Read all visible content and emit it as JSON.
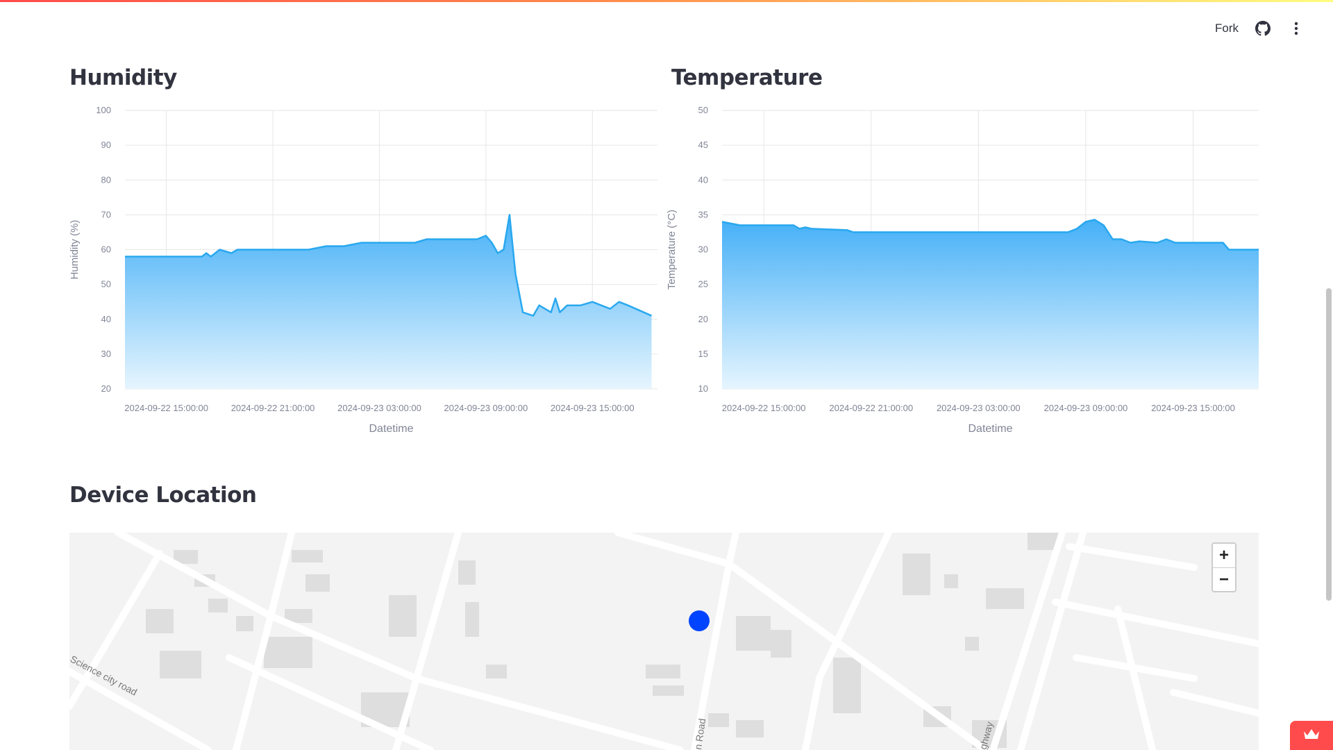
{
  "header": {
    "fork_label": "Fork"
  },
  "icons": {
    "github": "github-icon",
    "menu": "more-vertical-icon",
    "brand": "crown-icon"
  },
  "sections": {
    "humidity_title": "Humidity",
    "temperature_title": "Temperature",
    "location_title": "Device Location"
  },
  "chart_data": [
    {
      "type": "area",
      "title": "Humidity",
      "xlabel": "Datetime",
      "ylabel": "Humidity (%)",
      "ylim": [
        20,
        100
      ],
      "yticks": [
        100,
        90,
        80,
        70,
        60,
        50,
        40,
        30,
        20
      ],
      "xticks": [
        "2024-09-22 15:00:00",
        "2024-09-22 21:00:00",
        "2024-09-23 03:00:00",
        "2024-09-23 09:00:00",
        "2024-09-23 15:00:00"
      ],
      "grid": true,
      "color": "#29a8ef",
      "x": [
        "2024-09-22 12:40",
        "2024-09-22 17:00",
        "2024-09-22 17:15",
        "2024-09-22 17:30",
        "2024-09-22 18:00",
        "2024-09-22 18:40",
        "2024-09-22 19:00",
        "2024-09-22 23:00",
        "2024-09-23 00:00",
        "2024-09-23 01:00",
        "2024-09-23 02:00",
        "2024-09-23 05:00",
        "2024-09-23 05:40",
        "2024-09-23 08:30",
        "2024-09-23 09:00",
        "2024-09-23 09:20",
        "2024-09-23 09:40",
        "2024-09-23 10:00",
        "2024-09-23 10:20",
        "2024-09-23 10:40",
        "2024-09-23 11:05",
        "2024-09-23 11:40",
        "2024-09-23 12:00",
        "2024-09-23 12:40",
        "2024-09-23 12:55",
        "2024-09-23 13:10",
        "2024-09-23 13:35",
        "2024-09-23 14:20",
        "2024-09-23 15:00",
        "2024-09-23 15:30",
        "2024-09-23 16:00",
        "2024-09-23 16:30",
        "2024-09-23 17:00",
        "2024-09-23 18:20"
      ],
      "y": [
        58,
        58,
        59,
        58,
        60,
        59,
        60,
        60,
        61,
        61,
        62,
        62,
        63,
        63,
        64,
        62,
        59,
        60,
        70,
        53,
        42,
        41,
        44,
        42,
        46,
        42,
        44,
        44,
        45,
        44,
        43,
        45,
        44,
        41
      ]
    },
    {
      "type": "area",
      "title": "Temperature",
      "xlabel": "Datetime",
      "ylabel": "Temperature (°C)",
      "ylim": [
        10,
        50
      ],
      "yticks": [
        50,
        45,
        40,
        35,
        30,
        25,
        20,
        15,
        10
      ],
      "xticks": [
        "2024-09-22 15:00:00",
        "2024-09-22 21:00:00",
        "2024-09-23 03:00:00",
        "2024-09-23 09:00:00",
        "2024-09-23 15:00:00"
      ],
      "grid": true,
      "color": "#29a8ef",
      "x": [
        "2024-09-22 12:40",
        "2024-09-22 13:40",
        "2024-09-22 16:40",
        "2024-09-22 17:00",
        "2024-09-22 17:20",
        "2024-09-22 17:40",
        "2024-09-22 19:40",
        "2024-09-22 20:00",
        "2024-09-23 08:00",
        "2024-09-23 08:30",
        "2024-09-23 09:00",
        "2024-09-23 09:30",
        "2024-09-23 10:00",
        "2024-09-23 10:30",
        "2024-09-23 11:00",
        "2024-09-23 11:30",
        "2024-09-23 12:00",
        "2024-09-23 13:00",
        "2024-09-23 13:30",
        "2024-09-23 14:00",
        "2024-09-23 16:40",
        "2024-09-23 17:00",
        "2024-09-23 18:40"
      ],
      "y": [
        34,
        33.5,
        33.5,
        33,
        33.2,
        33,
        32.8,
        32.5,
        32.5,
        33,
        34,
        34.3,
        33.5,
        31.5,
        31.5,
        31,
        31.2,
        31,
        31.5,
        31,
        31,
        30,
        30
      ]
    }
  ],
  "map": {
    "street_labels": [
      "Science city road",
      "n Road",
      "ghway"
    ],
    "zoom_in_label": "+",
    "zoom_out_label": "−",
    "marker_color": "#0044ff"
  },
  "colors": {
    "accent": "#ff4b4b",
    "map_bg": "#f3f3f3",
    "road": "#ffffff",
    "building": "#d9d9d9"
  }
}
